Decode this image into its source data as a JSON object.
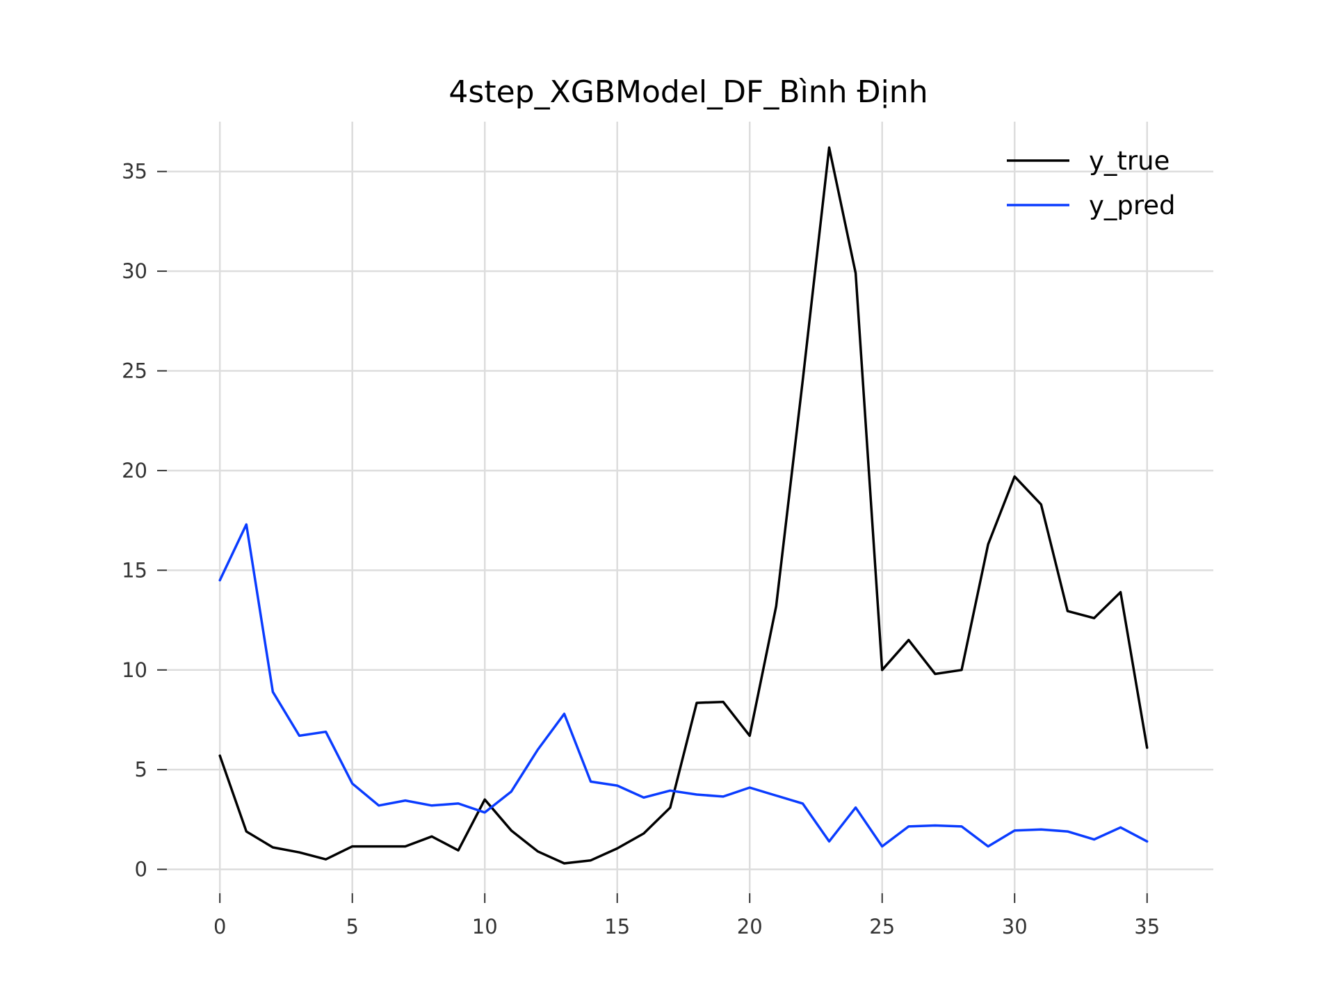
{
  "chart_data": {
    "type": "line",
    "title": "4step_XGBModel_DF_Bình Định",
    "xlabel": "",
    "ylabel": "",
    "xlim": [
      -2,
      37.5
    ],
    "ylim": [
      -1.2,
      37.5
    ],
    "xticks": [
      0,
      5,
      10,
      15,
      20,
      25,
      30,
      35
    ],
    "yticks": [
      0,
      5,
      10,
      15,
      20,
      25,
      30,
      35
    ],
    "grid": true,
    "legend": "top-right",
    "x": [
      0,
      1,
      2,
      3,
      4,
      5,
      6,
      7,
      8,
      9,
      10,
      11,
      12,
      13,
      14,
      15,
      16,
      17,
      18,
      19,
      20,
      21,
      22,
      23,
      24,
      25,
      26,
      27,
      28,
      29,
      30,
      31,
      32,
      33,
      34,
      35
    ],
    "series": [
      {
        "name": "y_true",
        "color": "#000000",
        "values": [
          5.7,
          1.9,
          1.1,
          0.85,
          0.5,
          1.15,
          1.15,
          1.15,
          1.65,
          0.95,
          3.5,
          1.95,
          0.9,
          0.3,
          0.45,
          1.05,
          1.8,
          3.1,
          8.35,
          8.4,
          6.7,
          13.2,
          24.5,
          36.2,
          29.9,
          10.0,
          11.5,
          9.8,
          10.0,
          16.3,
          19.7,
          18.3,
          12.95,
          12.6,
          13.9,
          6.1
        ]
      },
      {
        "name": "y_pred",
        "color": "#0a3cff",
        "values": [
          14.5,
          17.3,
          8.9,
          6.7,
          6.9,
          4.3,
          3.2,
          3.45,
          3.2,
          3.3,
          2.85,
          3.9,
          6.0,
          7.8,
          4.4,
          4.2,
          3.6,
          3.95,
          3.75,
          3.65,
          4.1,
          3.7,
          3.3,
          1.4,
          3.1,
          1.15,
          2.15,
          2.2,
          2.15,
          1.15,
          1.95,
          2.0,
          1.9,
          1.5,
          2.1,
          1.4
        ]
      }
    ]
  }
}
